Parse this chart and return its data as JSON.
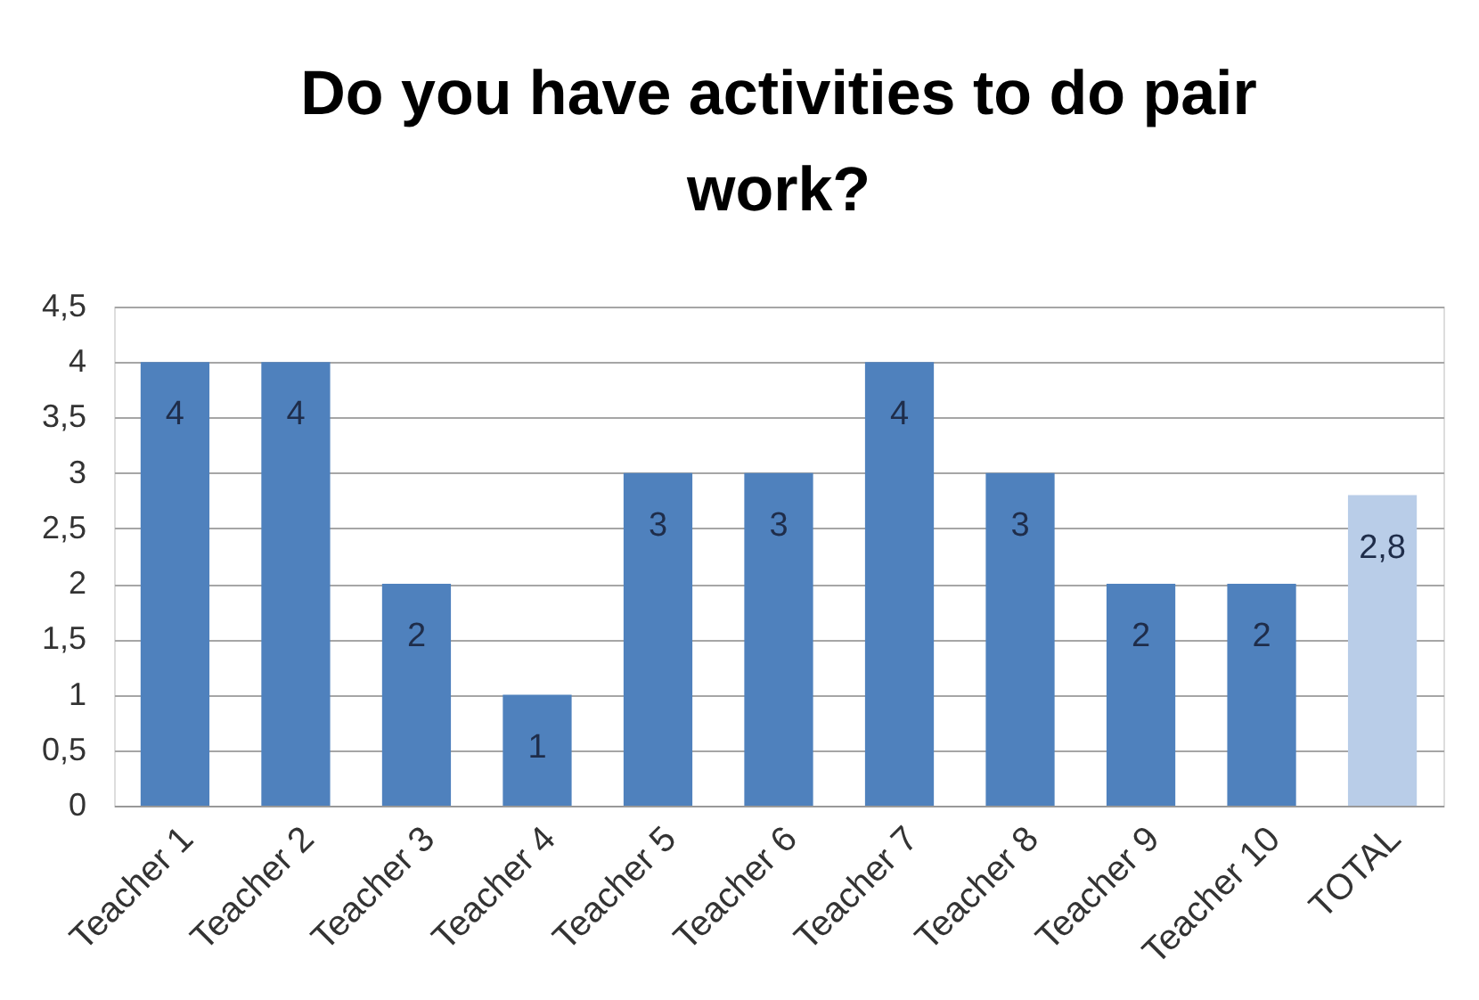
{
  "chart_data": {
    "type": "bar",
    "title": "Do you have activities to do pair work?",
    "categories": [
      "Teacher 1",
      "Teacher 2",
      "Teacher 3",
      "Teacher 4",
      "Teacher 5",
      "Teacher 6",
      "Teacher 7",
      "Teacher 8",
      "Teacher 9",
      "Teacher 10",
      "TOTAL"
    ],
    "values": [
      4,
      4,
      2,
      1,
      3,
      3,
      4,
      3,
      2,
      2,
      2.8
    ],
    "colors": [
      "#4f81bd",
      "#4f81bd",
      "#4f81bd",
      "#4f81bd",
      "#4f81bd",
      "#4f81bd",
      "#4f81bd",
      "#4f81bd",
      "#4f81bd",
      "#4f81bd",
      "#b9cde8"
    ],
    "value_labels": [
      "4",
      "4",
      "2",
      "1",
      "3",
      "3",
      "4",
      "3",
      "2",
      "2",
      "2,8"
    ],
    "ylim": [
      0,
      4.5
    ],
    "yticks": [
      0,
      {
        "value": 0.5,
        "label": "0,5"
      },
      1,
      {
        "value": 1.5,
        "label": "1,5"
      },
      2,
      {
        "value": 2.5,
        "label": "2,5"
      },
      3,
      {
        "value": 3.5,
        "label": "3,5"
      },
      4,
      {
        "value": 4.5,
        "label": "4,5"
      }
    ],
    "grid": "y"
  }
}
